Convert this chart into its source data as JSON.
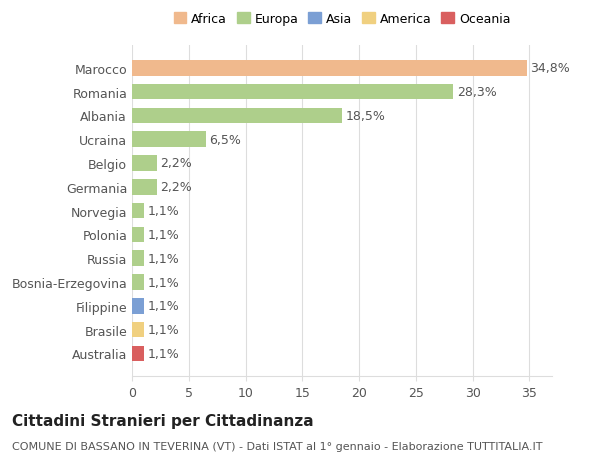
{
  "countries": [
    "Marocco",
    "Romania",
    "Albania",
    "Ucraina",
    "Belgio",
    "Germania",
    "Norvegia",
    "Polonia",
    "Russia",
    "Bosnia-Erzegovina",
    "Filippine",
    "Brasile",
    "Australia"
  ],
  "values": [
    34.8,
    28.3,
    18.5,
    6.5,
    2.2,
    2.2,
    1.1,
    1.1,
    1.1,
    1.1,
    1.1,
    1.1,
    1.1
  ],
  "labels": [
    "34,8%",
    "28,3%",
    "18,5%",
    "6,5%",
    "2,2%",
    "2,2%",
    "1,1%",
    "1,1%",
    "1,1%",
    "1,1%",
    "1,1%",
    "1,1%",
    "1,1%"
  ],
  "colors": [
    "#F0B98D",
    "#AECF8B",
    "#AECF8B",
    "#AECF8B",
    "#AECF8B",
    "#AECF8B",
    "#AECF8B",
    "#AECF8B",
    "#AECF8B",
    "#AECF8B",
    "#7B9FD4",
    "#F0D080",
    "#D95F5F"
  ],
  "legend_labels": [
    "Africa",
    "Europa",
    "Asia",
    "America",
    "Oceania"
  ],
  "legend_colors": [
    "#F0B98D",
    "#AECF8B",
    "#7B9FD4",
    "#F0D080",
    "#D95F5F"
  ],
  "title": "Cittadini Stranieri per Cittadinanza",
  "subtitle": "COMUNE DI BASSANO IN TEVERINA (VT) - Dati ISTAT al 1° gennaio - Elaborazione TUTTITALIA.IT",
  "xlim": [
    0,
    37
  ],
  "xticks": [
    0,
    5,
    10,
    15,
    20,
    25,
    30,
    35
  ],
  "background_color": "#FFFFFF",
  "grid_color": "#DDDDDD",
  "bar_height": 0.65,
  "label_fontsize": 9,
  "tick_fontsize": 9,
  "title_fontsize": 11,
  "subtitle_fontsize": 8
}
